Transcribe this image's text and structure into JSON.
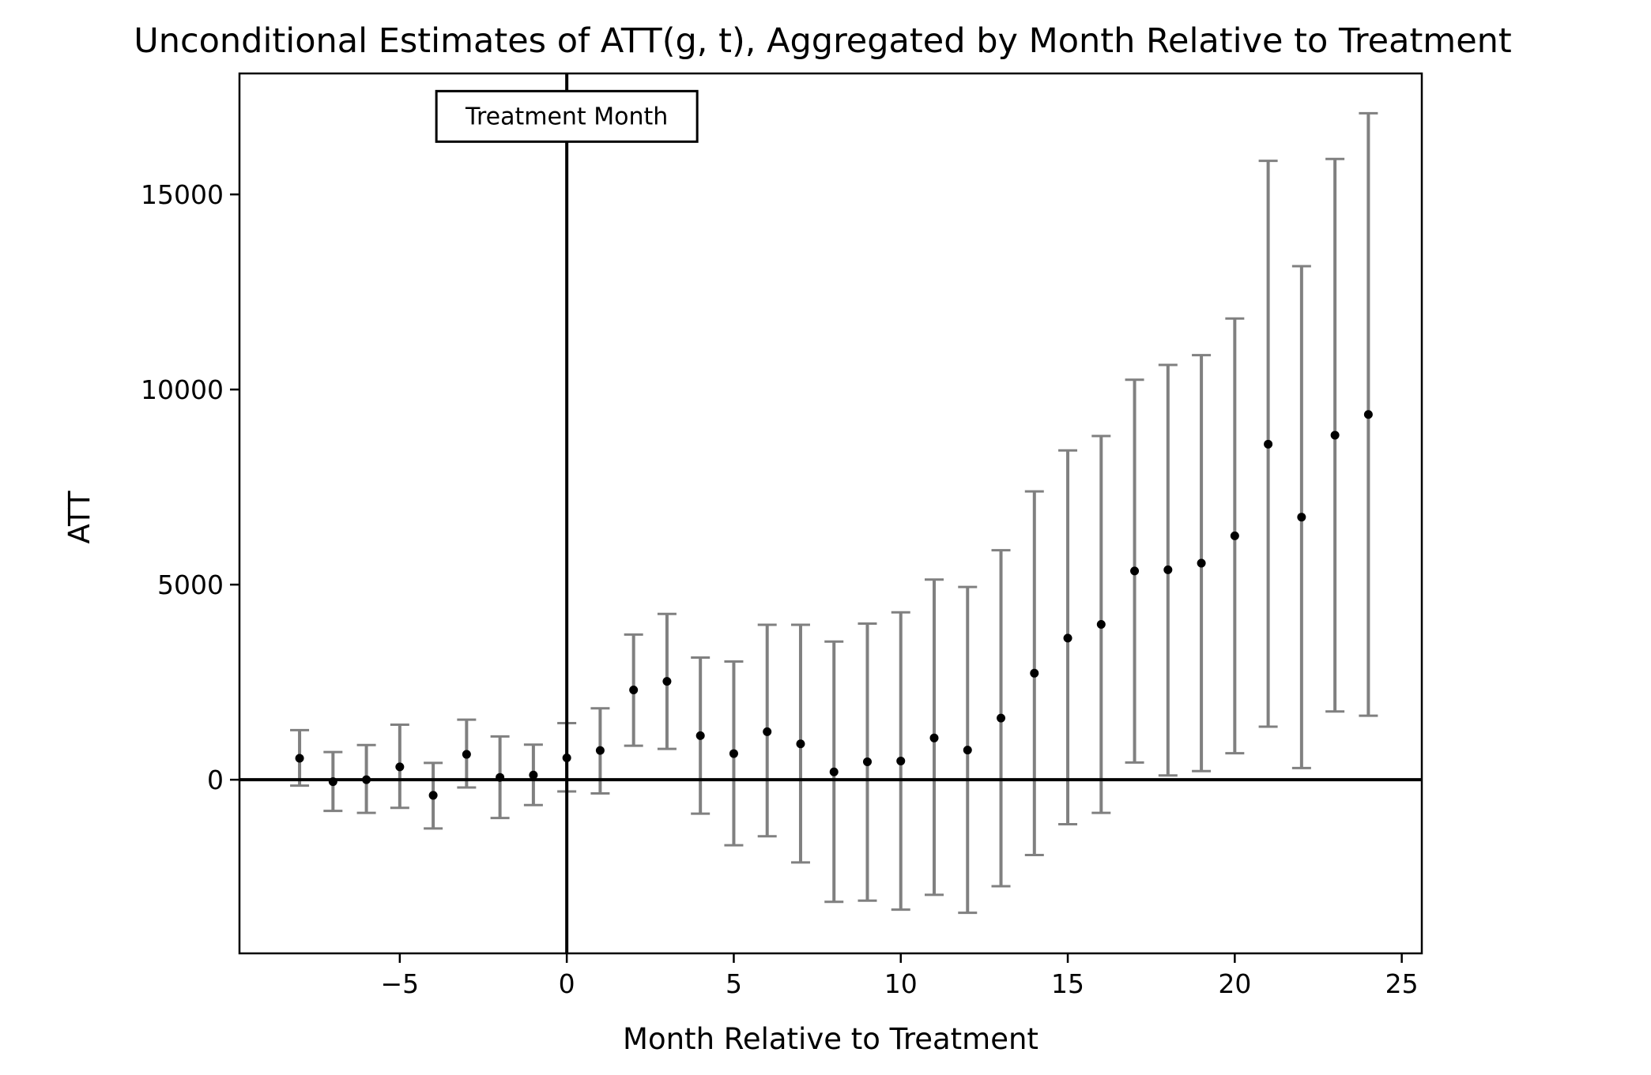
{
  "chart_data": {
    "type": "scatter",
    "title": "Unconditional Estimates of ATT(g, t), Aggregated by Month Relative to Treatment",
    "xlabel": "Month Relative to Treatment",
    "ylabel": "ATT",
    "xlim": [
      -9.8,
      25.6
    ],
    "ylim": [
      -4450,
      18100
    ],
    "xticks": [
      -5,
      0,
      5,
      10,
      15,
      20,
      25
    ],
    "xtick_labels": [
      "−5",
      "0",
      "5",
      "10",
      "15",
      "20",
      "25"
    ],
    "yticks": [
      0,
      5000,
      10000,
      15000
    ],
    "ytick_labels": [
      "0",
      "5000",
      "10000",
      "15000"
    ],
    "grid": false,
    "annotation": {
      "text": "Treatment Month",
      "x": 0,
      "y": 17000
    },
    "reference_lines": {
      "vertical_x": 0,
      "horizontal_y": 0
    },
    "colors": {
      "points": "#000000",
      "errorbars": "#808080",
      "reference": "#000000"
    },
    "series": [
      {
        "x": [
          -8,
          -7,
          -6,
          -5,
          -4,
          -3,
          -2,
          -1,
          0,
          1,
          2,
          3,
          4,
          5,
          6,
          7,
          8,
          9,
          10,
          11,
          12,
          13,
          14,
          15,
          16,
          17,
          18,
          19,
          20,
          21,
          22,
          23,
          24
        ],
        "y": [
          550,
          -50,
          0,
          330,
          -400,
          650,
          60,
          120,
          560,
          750,
          2300,
          2520,
          1130,
          670,
          1230,
          920,
          200,
          460,
          480,
          1070,
          760,
          1580,
          2730,
          3630,
          3980,
          5350,
          5380,
          5550,
          6250,
          8600,
          6730,
          8830,
          9360
        ],
        "lower": [
          -150,
          -800,
          -850,
          -720,
          -1250,
          -200,
          -980,
          -650,
          -300,
          -350,
          870,
          790,
          -870,
          -1680,
          -1450,
          -2120,
          -3130,
          -3100,
          -3330,
          -2950,
          -3410,
          -2730,
          -1930,
          -1140,
          -850,
          440,
          110,
          220,
          680,
          1360,
          300,
          1750,
          1640
        ],
        "upper": [
          1270,
          710,
          890,
          1410,
          430,
          1540,
          1110,
          900,
          1450,
          1830,
          3720,
          4250,
          3130,
          3030,
          3970,
          3970,
          3540,
          4000,
          4290,
          5130,
          4940,
          5880,
          7390,
          8440,
          8810,
          10250,
          10630,
          10880,
          11820,
          15860,
          13160,
          15910,
          17080
        ]
      }
    ]
  }
}
